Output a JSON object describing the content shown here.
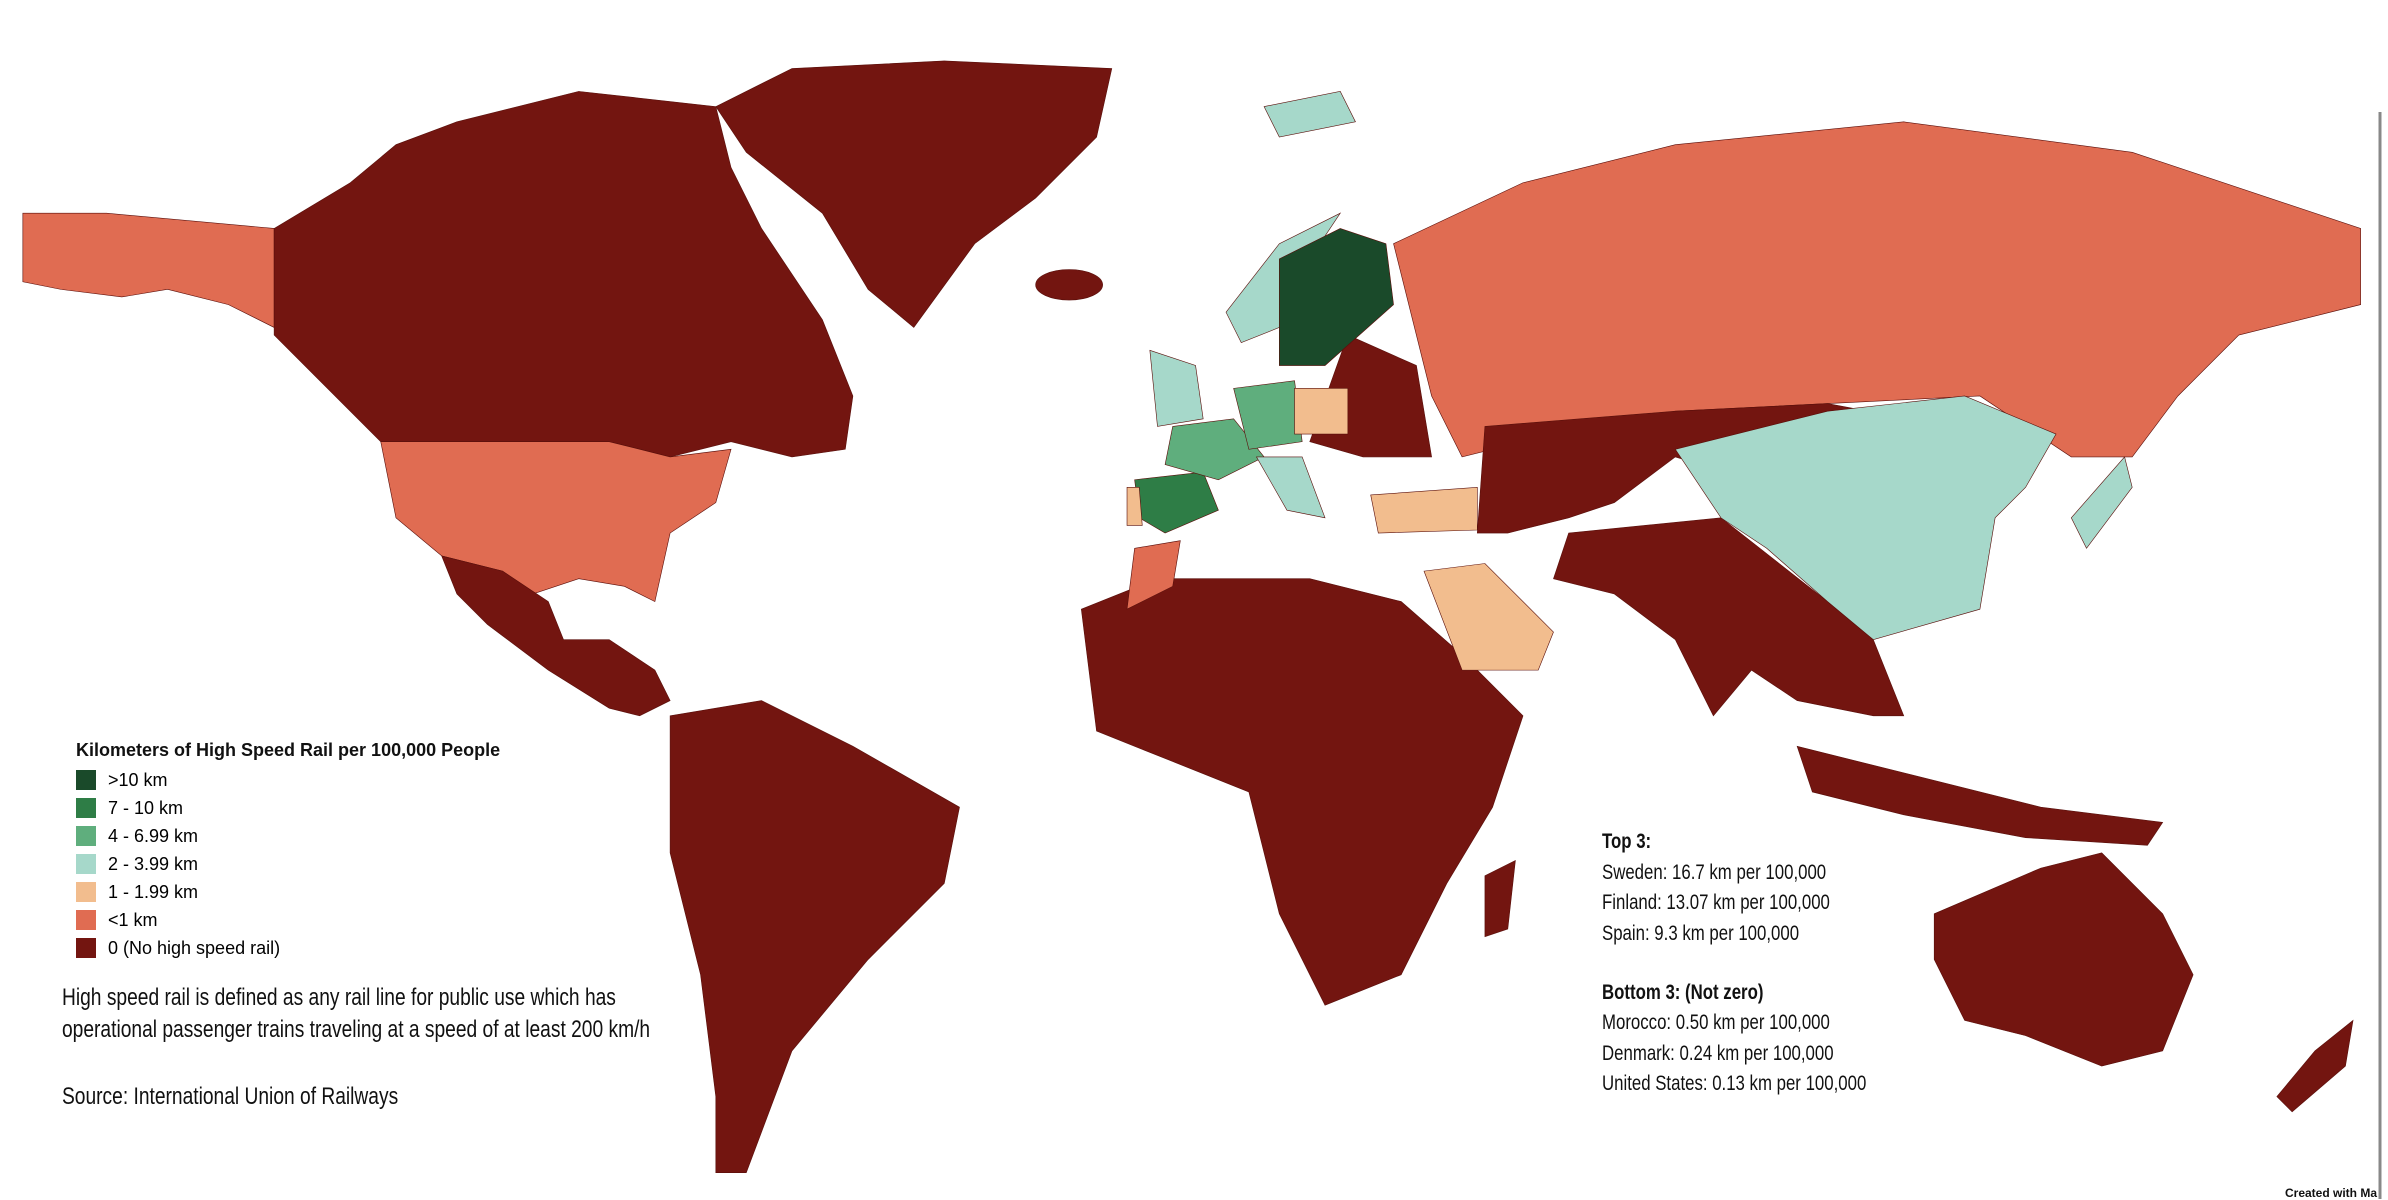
{
  "legend": {
    "title": "Kilometers of High Speed Rail per 100,000 People",
    "items": [
      {
        "label": ">10 km",
        "color": "#1a4a2a"
      },
      {
        "label": "7 - 10 km",
        "color": "#2e7d46"
      },
      {
        "label": "4 - 6.99 km",
        "color": "#5fae7d"
      },
      {
        "label": "2 - 3.99 km",
        "color": "#a6d8ca"
      },
      {
        "label": "1 - 1.99 km",
        "color": "#f2bd8e"
      },
      {
        "label": "<1 km",
        "color": "#e06c52"
      },
      {
        "label": "0 (No high speed rail)",
        "color": "#731510"
      }
    ]
  },
  "notes": {
    "definition": [
      "High speed rail is defined as any rail line for public use which has",
      "operational passenger trains traveling at a speed of at least 200 km/h"
    ],
    "source": "Source: International Union of Railways"
  },
  "top": {
    "title": "Top 3:",
    "items": [
      "Sweden: 16.7 km per 100,000",
      "Finland: 13.07 km per 100,000",
      "Spain: 9.3 km per 100,000"
    ]
  },
  "bottom": {
    "title": "Bottom 3: (Not zero)",
    "items": [
      "Morocco: 0.50 km per 100,000",
      "Denmark: 0.24 km per 100,000",
      "United States: 0.13 km per 100,000"
    ]
  },
  "credit": "Created with Ma"
}
